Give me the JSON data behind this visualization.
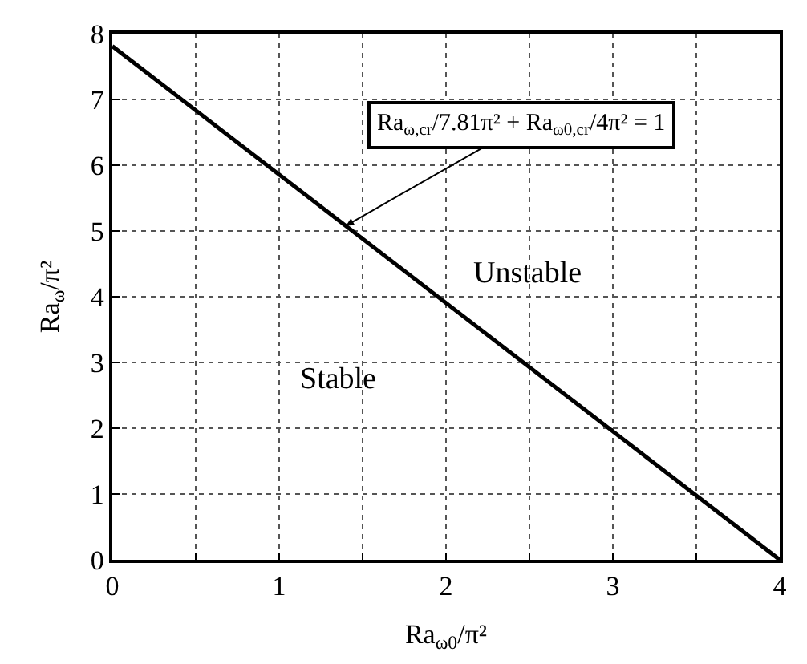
{
  "chart_data": {
    "type": "line",
    "x": [
      0,
      4
    ],
    "series": [
      {
        "color": "#000000",
        "values": [
          7.81,
          0
        ]
      }
    ],
    "xlabel": "Ra$_{ω0}$/π²",
    "ylabel": "Ra$_{ω}$/π²",
    "xlim": [
      0,
      4
    ],
    "ylim": [
      0,
      8
    ],
    "xticks": [
      0,
      {
        "value": 0.5,
        "label": null
      },
      1,
      {
        "value": 1.5,
        "label": null
      },
      2,
      {
        "value": 2.5,
        "label": null
      },
      3,
      {
        "value": 3.5,
        "label": null
      },
      4
    ],
    "yticks": [
      0,
      1,
      2,
      3,
      4,
      5,
      6,
      7,
      8
    ],
    "grid": true,
    "marker": "none",
    "line_style": "solid",
    "annotations": [
      {
        "text": "Ra$_{ω,cr}$/7.81π² + Ra$_{ω0,cr}$/4π² = 1",
        "x": 1.4,
        "y": 5.08
      },
      "Unstable",
      "Stable"
    ]
  }
}
